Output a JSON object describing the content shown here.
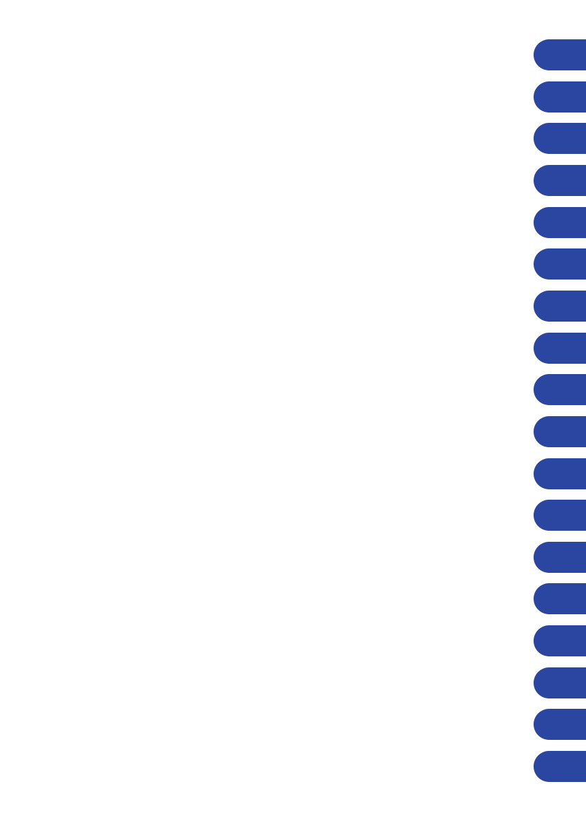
{
  "tabs": {
    "color": "#2a46a0",
    "count": 18
  }
}
